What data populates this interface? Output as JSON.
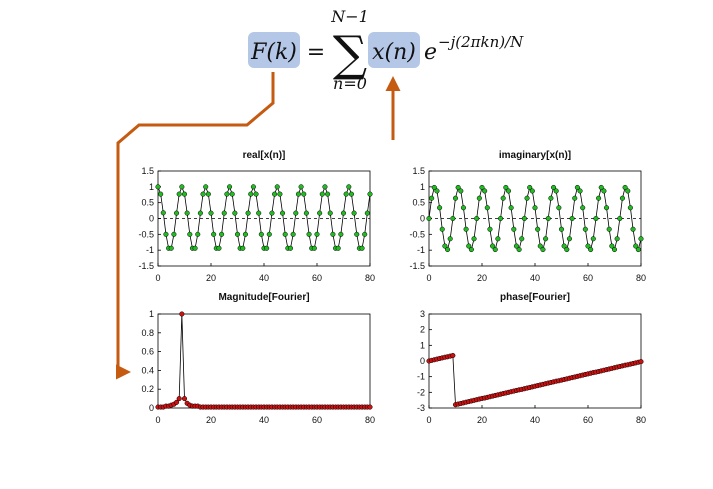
{
  "formula": {
    "lhs": "F(k)",
    "equals": "=",
    "sum_symbol": "∑",
    "sum_upper": "N−1",
    "sum_lower": "n=0",
    "term": "x(n)",
    "base": "e",
    "exponent": "−j(2πkn)/N",
    "highlight_color": "#b4c7e7",
    "arrow_color": "#c55a11"
  },
  "chart_data": [
    {
      "type": "line",
      "title": "real[x(n)]",
      "markers": "green dots",
      "xlim": [
        0,
        80
      ],
      "ylim": [
        -1.5,
        1.5
      ],
      "xticks": [
        "0",
        "20",
        "40",
        "60",
        "80"
      ],
      "yticks": [
        "1.5",
        "1",
        "0.5",
        "0",
        "-0.5",
        "-1",
        "-1.5"
      ],
      "reference_line": 0,
      "series": [
        {
          "x": [
            0,
            1,
            2,
            3,
            4,
            5,
            6,
            7,
            8,
            9,
            10,
            11,
            12,
            13,
            14,
            15,
            16,
            17,
            18,
            19,
            20,
            21,
            22,
            23,
            24,
            25,
            26,
            27,
            28,
            29,
            30,
            31,
            32,
            33,
            34,
            35,
            36,
            37,
            38,
            39,
            40,
            41,
            42,
            43,
            44,
            45,
            46,
            47,
            48,
            49,
            50,
            51,
            52,
            53,
            54,
            55,
            56,
            57,
            58,
            59,
            60,
            61,
            62,
            63,
            64,
            65,
            66,
            67,
            68,
            69,
            70,
            71,
            72,
            73,
            74,
            75,
            76,
            77,
            78,
            79,
            80
          ],
          "y": [
            1.0,
            0.77,
            0.18,
            -0.5,
            -0.94,
            -0.94,
            -0.5,
            0.17,
            0.77,
            1.0,
            0.77,
            0.17,
            -0.5,
            -0.94,
            -0.94,
            -0.5,
            0.17,
            0.77,
            1.0,
            0.77,
            0.17,
            -0.5,
            -0.94,
            -0.94,
            -0.5,
            0.17,
            0.77,
            1.0,
            0.77,
            0.17,
            -0.5,
            -0.94,
            -0.94,
            -0.5,
            0.17,
            0.77,
            1.0,
            0.77,
            0.17,
            -0.5,
            -0.94,
            -0.94,
            -0.5,
            0.17,
            0.77,
            1.0,
            0.77,
            0.17,
            -0.5,
            -0.94,
            -0.94,
            -0.5,
            0.17,
            0.77,
            1.0,
            0.77,
            0.17,
            -0.5,
            -0.94,
            -0.94,
            -0.5,
            0.17,
            0.77,
            1.0,
            0.77,
            0.17,
            -0.5,
            -0.94,
            -0.94,
            -0.5,
            0.17,
            0.77,
            1.0,
            0.77,
            0.17,
            -0.5,
            -0.94,
            -0.94,
            -0.5,
            0.17,
            0.77
          ]
        }
      ]
    },
    {
      "type": "line",
      "title": "imaginary[x(n)]",
      "markers": "green dots",
      "xlim": [
        0,
        80
      ],
      "ylim": [
        -1.5,
        1.5
      ],
      "xticks": [
        "0",
        "20",
        "40",
        "60",
        "80"
      ],
      "yticks": [
        "1.5",
        "1",
        "0.5",
        "0",
        "-0.5",
        "-1",
        "-1.5"
      ],
      "reference_line": 0,
      "series": [
        {
          "x": [
            0,
            1,
            2,
            3,
            4,
            5,
            6,
            7,
            8,
            9,
            10,
            11,
            12,
            13,
            14,
            15,
            16,
            17,
            18,
            19,
            20,
            21,
            22,
            23,
            24,
            25,
            26,
            27,
            28,
            29,
            30,
            31,
            32,
            33,
            34,
            35,
            36,
            37,
            38,
            39,
            40,
            41,
            42,
            43,
            44,
            45,
            46,
            47,
            48,
            49,
            50,
            51,
            52,
            53,
            54,
            55,
            56,
            57,
            58,
            59,
            60,
            61,
            62,
            63,
            64,
            65,
            66,
            67,
            68,
            69,
            70,
            71,
            72,
            73,
            74,
            75,
            76,
            77,
            78,
            79,
            80
          ],
          "y": [
            0.0,
            0.64,
            0.98,
            0.87,
            0.34,
            -0.34,
            -0.87,
            -0.98,
            -0.64,
            0.0,
            0.64,
            0.98,
            0.87,
            0.34,
            -0.34,
            -0.87,
            -0.98,
            -0.64,
            0.0,
            0.64,
            0.98,
            0.87,
            0.34,
            -0.34,
            -0.87,
            -0.98,
            -0.64,
            0.0,
            0.64,
            0.98,
            0.87,
            0.34,
            -0.34,
            -0.87,
            -0.98,
            -0.64,
            0.0,
            0.64,
            0.98,
            0.87,
            0.34,
            -0.34,
            -0.87,
            -0.98,
            -0.64,
            0.0,
            0.64,
            0.98,
            0.87,
            0.34,
            -0.34,
            -0.87,
            -0.98,
            -0.64,
            0.0,
            0.64,
            0.98,
            0.87,
            0.34,
            -0.34,
            -0.87,
            -0.98,
            -0.64,
            0.0,
            0.64,
            0.98,
            0.87,
            0.34,
            -0.34,
            -0.87,
            -0.98,
            -0.64,
            0.0,
            0.64,
            0.98,
            0.87,
            0.34,
            -0.34,
            -0.87,
            -0.98,
            -0.64
          ]
        }
      ]
    },
    {
      "type": "line",
      "title": "Magnitude[Fourier]",
      "markers": "red dots",
      "xlim": [
        0,
        80
      ],
      "ylim": [
        0,
        1
      ],
      "xticks": [
        "0",
        "20",
        "40",
        "60",
        "80"
      ],
      "yticks": [
        "1",
        "0.8",
        "0.6",
        "0.4",
        "0.2",
        "0"
      ],
      "series": [
        {
          "x": [
            0,
            1,
            2,
            3,
            4,
            5,
            6,
            7,
            8,
            9,
            10,
            11,
            12,
            13,
            14,
            15,
            16,
            17,
            18,
            19,
            20,
            21,
            22,
            23,
            24,
            25,
            26,
            27,
            28,
            29,
            30,
            31,
            32,
            33,
            34,
            35,
            36,
            37,
            38,
            39,
            40,
            41,
            42,
            43,
            44,
            45,
            46,
            47,
            48,
            49,
            50,
            51,
            52,
            53,
            54,
            55,
            56,
            57,
            58,
            59,
            60,
            61,
            62,
            63,
            64,
            65,
            66,
            67,
            68,
            69,
            70,
            71,
            72,
            73,
            74,
            75,
            76,
            77,
            78,
            79,
            80
          ],
          "y": [
            0.01,
            0.01,
            0.01,
            0.02,
            0.02,
            0.03,
            0.04,
            0.06,
            0.1,
            1.0,
            0.1,
            0.05,
            0.03,
            0.02,
            0.02,
            0.02,
            0.01,
            0.01,
            0.01,
            0.01,
            0.01,
            0.01,
            0.01,
            0.01,
            0.01,
            0.01,
            0.01,
            0.01,
            0.01,
            0.01,
            0.01,
            0.01,
            0.01,
            0.01,
            0.01,
            0.01,
            0.01,
            0.01,
            0.01,
            0.01,
            0.01,
            0.01,
            0.01,
            0.01,
            0.01,
            0.01,
            0.01,
            0.01,
            0.01,
            0.01,
            0.01,
            0.01,
            0.01,
            0.01,
            0.01,
            0.01,
            0.01,
            0.01,
            0.01,
            0.01,
            0.01,
            0.01,
            0.01,
            0.01,
            0.01,
            0.01,
            0.01,
            0.01,
            0.01,
            0.01,
            0.01,
            0.01,
            0.01,
            0.01,
            0.01,
            0.01,
            0.01,
            0.01,
            0.01,
            0.01,
            0.01
          ]
        }
      ]
    },
    {
      "type": "line",
      "title": "phase[Fourier]",
      "markers": "red dots",
      "xlim": [
        0,
        80
      ],
      "ylim": [
        -3,
        3
      ],
      "xticks": [
        "0",
        "20",
        "40",
        "60",
        "80"
      ],
      "yticks": [
        "3",
        "2",
        "1",
        "0",
        "-1",
        "-2",
        "-3"
      ],
      "series": [
        {
          "x": [
            0,
            1,
            2,
            3,
            4,
            5,
            6,
            7,
            8,
            9,
            10,
            11,
            12,
            13,
            14,
            15,
            16,
            17,
            18,
            19,
            20,
            21,
            22,
            23,
            24,
            25,
            26,
            27,
            28,
            29,
            30,
            31,
            32,
            33,
            34,
            35,
            36,
            37,
            38,
            39,
            40,
            41,
            42,
            43,
            44,
            45,
            46,
            47,
            48,
            49,
            50,
            51,
            52,
            53,
            54,
            55,
            56,
            57,
            58,
            59,
            60,
            61,
            62,
            63,
            64,
            65,
            66,
            67,
            68,
            69,
            70,
            71,
            72,
            73,
            74,
            75,
            76,
            77,
            78,
            79,
            80
          ],
          "y": [
            0.0,
            0.04,
            0.08,
            0.12,
            0.16,
            0.2,
            0.24,
            0.27,
            0.31,
            0.35,
            -2.79,
            -2.75,
            -2.71,
            -2.67,
            -2.63,
            -2.59,
            -2.55,
            -2.51,
            -2.47,
            -2.43,
            -2.39,
            -2.36,
            -2.32,
            -2.28,
            -2.24,
            -2.2,
            -2.16,
            -2.12,
            -2.08,
            -2.04,
            -2.0,
            -1.96,
            -1.92,
            -1.88,
            -1.84,
            -1.81,
            -1.77,
            -1.73,
            -1.69,
            -1.65,
            -1.61,
            -1.57,
            -1.53,
            -1.49,
            -1.45,
            -1.41,
            -1.37,
            -1.33,
            -1.29,
            -1.26,
            -1.22,
            -1.18,
            -1.14,
            -1.1,
            -1.06,
            -1.02,
            -0.98,
            -0.94,
            -0.9,
            -0.86,
            -0.82,
            -0.78,
            -0.74,
            -0.71,
            -0.67,
            -0.63,
            -0.59,
            -0.55,
            -0.51,
            -0.47,
            -0.43,
            -0.39,
            -0.35,
            -0.31,
            -0.27,
            -0.24,
            -0.2,
            -0.16,
            -0.12,
            -0.08,
            -0.04
          ]
        }
      ]
    }
  ]
}
